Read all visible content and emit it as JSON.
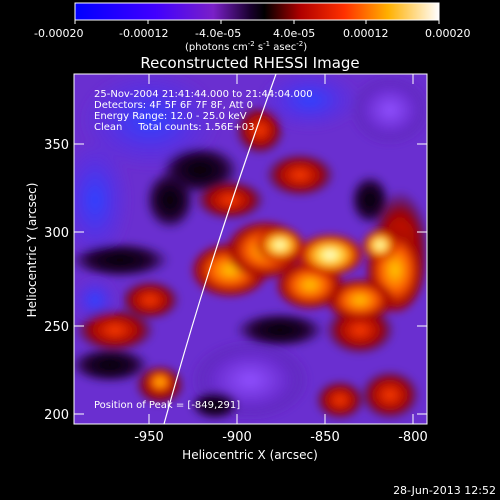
{
  "colorbar": {
    "tick_labels": [
      "-0.00020",
      "-0.00012",
      "-4.0e-05",
      "4.0e-05",
      "0.00012",
      "0.00020"
    ],
    "units_label": "(photons cm",
    "units_exp1": "-2",
    "units_mid": " s",
    "units_exp2": "-1",
    "units_tail": " asec",
    "units_exp3": "-2",
    "units_close": ")",
    "range": [
      -0.0002,
      0.0002
    ]
  },
  "plot": {
    "title": "Reconstructed RHESSI Image",
    "info_lines": [
      "25-Nov-2004 21:41:44.000 to 21:44:04.000",
      "Detectors: 4F 5F 6F 7F 8F, Att 0",
      "Energy Range: 12.0 - 25.0 keV",
      "Clean     Total counts: 1.56E+03"
    ],
    "peak_label": "Position of Peak = [-849,291]",
    "xlabel": "Heliocentric X (arcsec)",
    "ylabel": "Heliocentric Y (arcsec)",
    "x_ticks": [
      "-950",
      "-900",
      "-850",
      "-800"
    ],
    "y_ticks": [
      "350",
      "300",
      "250",
      "200"
    ],
    "xlim": [
      -990,
      -795
    ],
    "ylim": [
      195,
      390
    ]
  },
  "footer": {
    "timestamp": "28-Jun-2013 12:52"
  }
}
